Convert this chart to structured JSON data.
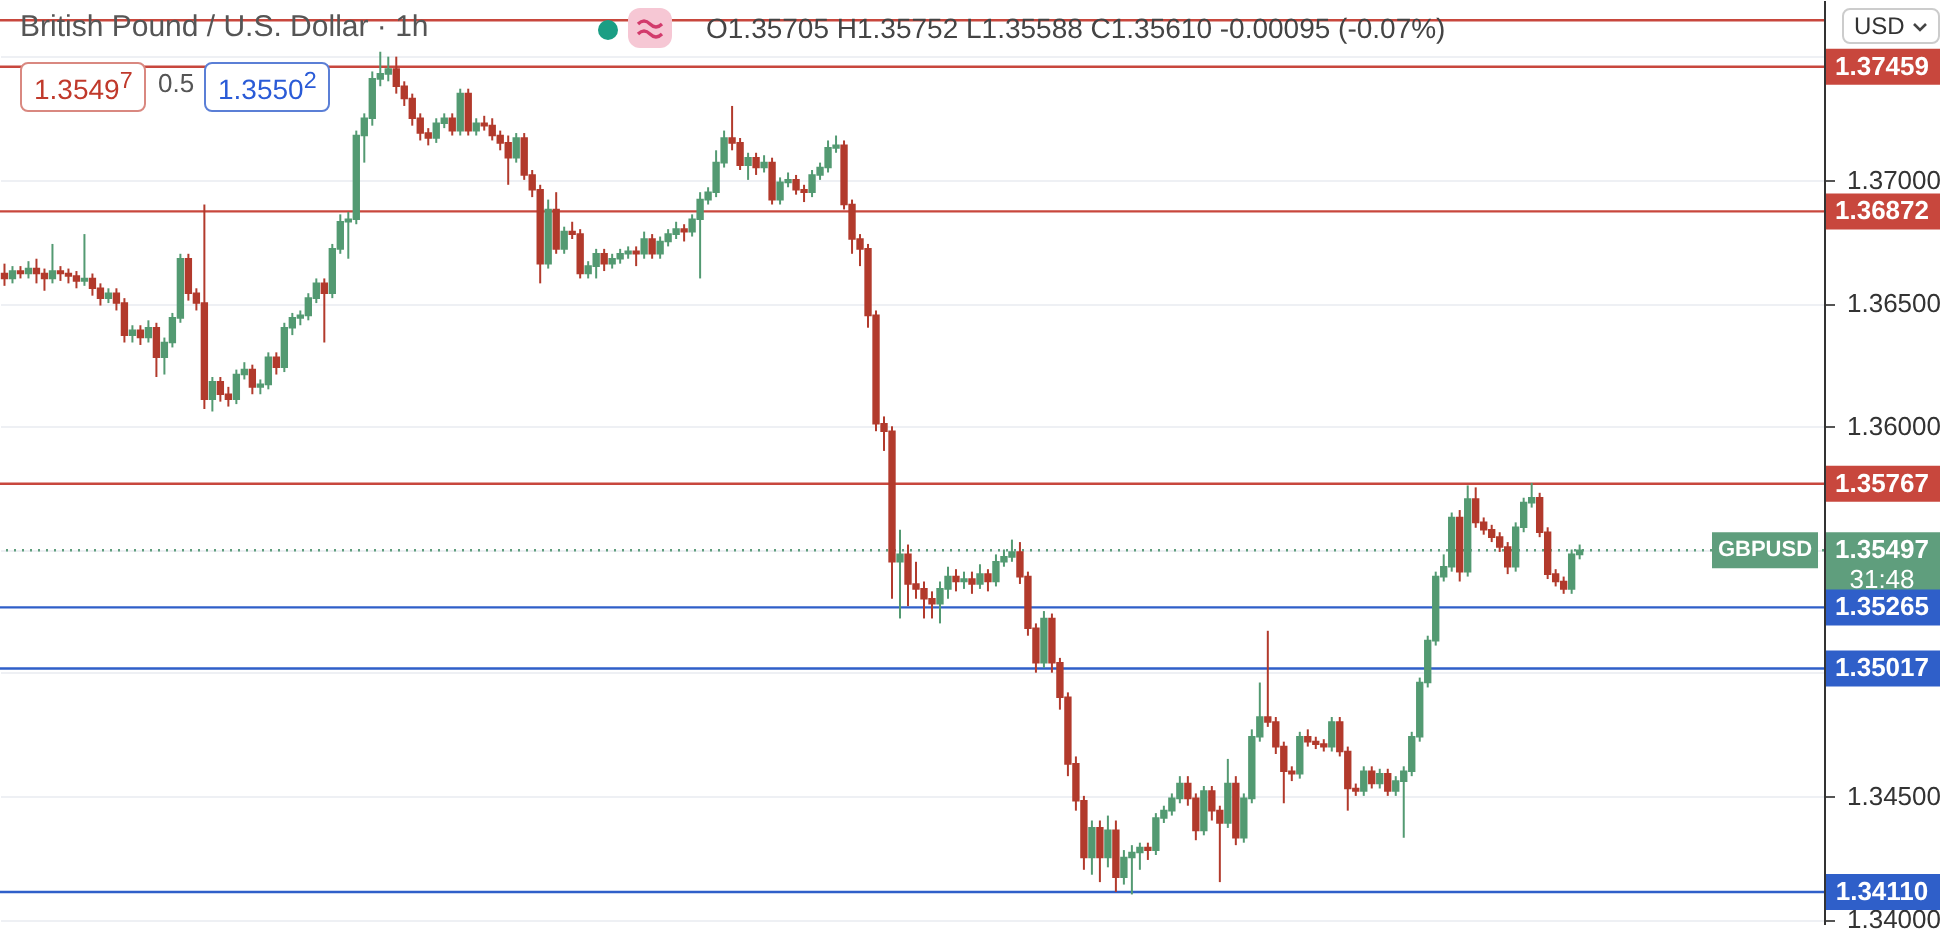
{
  "chart_data": {
    "type": "candlestick",
    "title": "British Pound / U.S. Dollar · 1h",
    "categories": [
      null,
      null,
      null,
      null,
      null,
      null,
      null,
      null,
      null,
      null,
      null,
      null,
      null,
      null,
      null,
      null,
      null,
      null,
      null,
      null,
      null,
      null,
      null,
      null,
      null,
      null,
      null,
      null,
      null,
      null,
      null,
      null,
      null,
      null,
      null,
      null,
      null,
      null,
      null,
      null,
      null,
      null,
      null,
      null,
      null,
      null,
      null,
      null,
      null,
      null,
      null,
      null,
      null,
      null,
      null,
      null,
      null,
      null,
      null,
      null,
      null,
      null,
      null,
      null,
      null,
      null,
      null,
      null,
      null,
      null,
      null,
      null,
      null,
      null,
      null,
      null,
      null,
      null,
      null,
      null,
      null,
      null,
      null,
      null,
      null,
      null,
      null,
      null,
      null,
      null,
      null,
      null,
      null,
      null,
      null,
      null,
      null,
      null,
      null,
      null,
      null,
      null,
      null,
      null,
      null,
      null,
      null,
      null,
      null,
      null,
      null,
      null,
      null,
      null,
      null,
      null,
      null,
      null,
      null,
      null,
      null,
      null,
      null,
      null,
      null,
      null,
      null,
      null,
      null,
      null,
      null,
      null,
      null,
      null,
      null,
      null,
      null,
      null,
      null,
      null,
      null,
      null,
      null,
      null,
      null,
      null,
      null,
      null,
      null,
      null,
      null,
      null,
      null,
      null,
      null,
      null,
      null,
      null,
      null,
      null,
      null,
      null,
      null,
      null,
      null,
      null,
      null,
      null,
      null,
      null,
      null,
      null,
      null,
      null,
      null,
      null,
      null,
      null,
      null,
      null,
      null,
      null,
      null,
      null,
      null,
      null,
      null,
      null,
      null,
      null,
      null,
      null,
      null,
      null,
      null,
      null,
      null,
      null,
      null,
      null,
      null,
      null,
      null,
      null,
      null,
      null,
      null,
      null,
      null,
      null,
      null,
      null,
      null,
      null,
      null,
      null,
      null,
      null,
      null,
      null,
      null,
      null,
      null,
      null,
      null,
      null,
      null,
      null
    ],
    "ohlc": [
      [
        1.3662,
        1.3666,
        1.3657,
        1.366
      ],
      [
        1.366,
        1.3665,
        1.3658,
        1.3663
      ],
      [
        1.3663,
        1.3665,
        1.366,
        1.3662
      ],
      [
        1.3662,
        1.3667,
        1.366,
        1.3664
      ],
      [
        1.3664,
        1.3668,
        1.3658,
        1.3662
      ],
      [
        1.3662,
        1.3664,
        1.3655,
        1.366
      ],
      [
        1.366,
        1.3674,
        1.3658,
        1.3663
      ],
      [
        1.3663,
        1.3665,
        1.3659,
        1.3662
      ],
      [
        1.3662,
        1.3664,
        1.3658,
        1.3661
      ],
      [
        1.3661,
        1.3663,
        1.3656,
        1.3659
      ],
      [
        1.3659,
        1.3678,
        1.3657,
        1.366
      ],
      [
        1.366,
        1.3662,
        1.3653,
        1.3656
      ],
      [
        1.3656,
        1.3658,
        1.3649,
        1.3652
      ],
      [
        1.3652,
        1.3656,
        1.365,
        1.3654
      ],
      [
        1.3654,
        1.3656,
        1.3647,
        1.365
      ],
      [
        1.365,
        1.3652,
        1.3634,
        1.3637
      ],
      [
        1.3637,
        1.3641,
        1.3634,
        1.3639
      ],
      [
        1.3639,
        1.3641,
        1.3633,
        1.3636
      ],
      [
        1.3636,
        1.3643,
        1.3634,
        1.364
      ],
      [
        1.364,
        1.3642,
        1.362,
        1.3628
      ],
      [
        1.3628,
        1.3636,
        1.3621,
        1.3634
      ],
      [
        1.3634,
        1.3646,
        1.3632,
        1.3644
      ],
      [
        1.3644,
        1.367,
        1.3642,
        1.3668
      ],
      [
        1.3668,
        1.367,
        1.3651,
        1.3654
      ],
      [
        1.3654,
        1.3656,
        1.3647,
        1.365
      ],
      [
        1.365,
        1.369,
        1.3607,
        1.3611
      ],
      [
        1.3611,
        1.362,
        1.3606,
        1.3618
      ],
      [
        1.3618,
        1.362,
        1.361,
        1.3613
      ],
      [
        1.3613,
        1.3616,
        1.3608,
        1.3611
      ],
      [
        1.3611,
        1.3623,
        1.3609,
        1.3621
      ],
      [
        1.3621,
        1.3626,
        1.3619,
        1.3623
      ],
      [
        1.3623,
        1.3625,
        1.3613,
        1.3616
      ],
      [
        1.3616,
        1.3619,
        1.3613,
        1.3617
      ],
      [
        1.3617,
        1.363,
        1.3615,
        1.3628
      ],
      [
        1.3628,
        1.363,
        1.3621,
        1.3624
      ],
      [
        1.3624,
        1.3642,
        1.3622,
        1.364
      ],
      [
        1.364,
        1.3646,
        1.3637,
        1.3644
      ],
      [
        1.3644,
        1.3647,
        1.3641,
        1.3645
      ],
      [
        1.3645,
        1.3654,
        1.3643,
        1.3652
      ],
      [
        1.3652,
        1.366,
        1.365,
        1.3658
      ],
      [
        1.3658,
        1.366,
        1.3634,
        1.3654
      ],
      [
        1.3654,
        1.3674,
        1.3652,
        1.3672
      ],
      [
        1.3672,
        1.3686,
        1.367,
        1.3683
      ],
      [
        1.3683,
        1.3687,
        1.3668,
        1.3684
      ],
      [
        1.3684,
        1.372,
        1.3682,
        1.3718
      ],
      [
        1.3718,
        1.3727,
        1.3707,
        1.3725
      ],
      [
        1.3725,
        1.3744,
        1.3722,
        1.3741
      ],
      [
        1.3741,
        1.3752,
        1.3738,
        1.3743
      ],
      [
        1.3743,
        1.375,
        1.374,
        1.3745
      ],
      [
        1.3745,
        1.375,
        1.3735,
        1.3738
      ],
      [
        1.3738,
        1.374,
        1.373,
        1.3733
      ],
      [
        1.3733,
        1.3735,
        1.3722,
        1.3725
      ],
      [
        1.3725,
        1.3727,
        1.3716,
        1.3719
      ],
      [
        1.3719,
        1.3721,
        1.3714,
        1.3717
      ],
      [
        1.3717,
        1.3725,
        1.3715,
        1.3723
      ],
      [
        1.3723,
        1.3727,
        1.3721,
        1.3725
      ],
      [
        1.3725,
        1.3727,
        1.3718,
        1.372
      ],
      [
        1.372,
        1.3737,
        1.3718,
        1.3735
      ],
      [
        1.3735,
        1.3737,
        1.3718,
        1.372
      ],
      [
        1.372,
        1.3725,
        1.3718,
        1.3723
      ],
      [
        1.3723,
        1.3726,
        1.372,
        1.3722
      ],
      [
        1.3722,
        1.3725,
        1.3716,
        1.3718
      ],
      [
        1.3718,
        1.372,
        1.3712,
        1.3715
      ],
      [
        1.3715,
        1.3718,
        1.3698,
        1.3709
      ],
      [
        1.3709,
        1.3719,
        1.3707,
        1.3717
      ],
      [
        1.3717,
        1.3719,
        1.37,
        1.3702
      ],
      [
        1.3702,
        1.3704,
        1.3693,
        1.3696
      ],
      [
        1.3696,
        1.3698,
        1.3658,
        1.3666
      ],
      [
        1.3666,
        1.3692,
        1.3664,
        1.3688
      ],
      [
        1.3688,
        1.3695,
        1.367,
        1.3672
      ],
      [
        1.3672,
        1.3681,
        1.367,
        1.3679
      ],
      [
        1.3679,
        1.3683,
        1.3676,
        1.3678
      ],
      [
        1.3678,
        1.368,
        1.366,
        1.3662
      ],
      [
        1.3662,
        1.3667,
        1.366,
        1.3665
      ],
      [
        1.3665,
        1.3672,
        1.366,
        1.367
      ],
      [
        1.367,
        1.3672,
        1.3663,
        1.3666
      ],
      [
        1.3666,
        1.367,
        1.3664,
        1.3668
      ],
      [
        1.3668,
        1.3672,
        1.3666,
        1.367
      ],
      [
        1.367,
        1.3673,
        1.3668,
        1.3671
      ],
      [
        1.3671,
        1.3673,
        1.3665,
        1.367
      ],
      [
        1.367,
        1.3679,
        1.3668,
        1.3676
      ],
      [
        1.3676,
        1.3678,
        1.3668,
        1.367
      ],
      [
        1.367,
        1.3677,
        1.3668,
        1.3675
      ],
      [
        1.3675,
        1.368,
        1.3673,
        1.3678
      ],
      [
        1.3678,
        1.3683,
        1.3676,
        1.368
      ],
      [
        1.368,
        1.3682,
        1.3675,
        1.3679
      ],
      [
        1.3679,
        1.3686,
        1.3677,
        1.3684
      ],
      [
        1.3684,
        1.3695,
        1.366,
        1.3692
      ],
      [
        1.3692,
        1.3697,
        1.369,
        1.3695
      ],
      [
        1.3695,
        1.3712,
        1.3693,
        1.3707
      ],
      [
        1.3707,
        1.372,
        1.3705,
        1.3717
      ],
      [
        1.3717,
        1.373,
        1.3712,
        1.3715
      ],
      [
        1.3715,
        1.3717,
        1.3704,
        1.3706
      ],
      [
        1.3706,
        1.3711,
        1.37,
        1.3709
      ],
      [
        1.3709,
        1.3711,
        1.3702,
        1.3705
      ],
      [
        1.3705,
        1.371,
        1.3703,
        1.3707
      ],
      [
        1.3707,
        1.3709,
        1.369,
        1.3692
      ],
      [
        1.3692,
        1.3701,
        1.369,
        1.3699
      ],
      [
        1.3699,
        1.3703,
        1.3697,
        1.37
      ],
      [
        1.37,
        1.3702,
        1.3694,
        1.3696
      ],
      [
        1.3696,
        1.3698,
        1.3691,
        1.3695
      ],
      [
        1.3695,
        1.3704,
        1.3693,
        1.3702
      ],
      [
        1.3702,
        1.3707,
        1.37,
        1.3705
      ],
      [
        1.3705,
        1.3716,
        1.3703,
        1.3713
      ],
      [
        1.3713,
        1.3718,
        1.3711,
        1.3714
      ],
      [
        1.3714,
        1.3716,
        1.3688,
        1.369
      ],
      [
        1.369,
        1.3692,
        1.367,
        1.3676
      ],
      [
        1.3676,
        1.3678,
        1.3665,
        1.3672
      ],
      [
        1.3672,
        1.3674,
        1.364,
        1.3645
      ],
      [
        1.3645,
        1.3647,
        1.3598,
        1.3601
      ],
      [
        1.3601,
        1.3604,
        1.359,
        1.3598
      ],
      [
        1.3598,
        1.36,
        1.353,
        1.3545
      ],
      [
        1.3545,
        1.3558,
        1.3522,
        1.3548
      ],
      [
        1.3548,
        1.3552,
        1.3527,
        1.3536
      ],
      [
        1.3536,
        1.3545,
        1.353,
        1.3534
      ],
      [
        1.3534,
        1.3537,
        1.3522,
        1.353
      ],
      [
        1.353,
        1.3533,
        1.3522,
        1.3528
      ],
      [
        1.3528,
        1.3537,
        1.352,
        1.3534
      ],
      [
        1.3534,
        1.3543,
        1.353,
        1.3539
      ],
      [
        1.3539,
        1.3542,
        1.3533,
        1.3537
      ],
      [
        1.3537,
        1.3541,
        1.3534,
        1.3538
      ],
      [
        1.3538,
        1.3541,
        1.3532,
        1.3536
      ],
      [
        1.3536,
        1.3544,
        1.3534,
        1.354
      ],
      [
        1.354,
        1.3542,
        1.3533,
        1.3537
      ],
      [
        1.3537,
        1.3548,
        1.3535,
        1.3545
      ],
      [
        1.3545,
        1.355,
        1.3543,
        1.3547
      ],
      [
        1.3547,
        1.3554,
        1.3545,
        1.3549
      ],
      [
        1.3549,
        1.3553,
        1.3536,
        1.3539
      ],
      [
        1.3539,
        1.3541,
        1.3515,
        1.3518
      ],
      [
        1.3518,
        1.352,
        1.35,
        1.3504
      ],
      [
        1.3504,
        1.3525,
        1.3502,
        1.3522
      ],
      [
        1.3522,
        1.3524,
        1.35,
        1.3504
      ],
      [
        1.3504,
        1.3506,
        1.3485,
        1.349
      ],
      [
        1.349,
        1.3492,
        1.3458,
        1.3463
      ],
      [
        1.3463,
        1.3466,
        1.3444,
        1.3448
      ],
      [
        1.3448,
        1.345,
        1.342,
        1.3425
      ],
      [
        1.3425,
        1.344,
        1.3418,
        1.3437
      ],
      [
        1.3437,
        1.344,
        1.3415,
        1.3425
      ],
      [
        1.3425,
        1.3442,
        1.3421,
        1.3436
      ],
      [
        1.3436,
        1.344,
        1.3411,
        1.3417
      ],
      [
        1.3417,
        1.3428,
        1.3414,
        1.3425
      ],
      [
        1.3425,
        1.343,
        1.341,
        1.3427
      ],
      [
        1.3427,
        1.3431,
        1.342,
        1.3429
      ],
      [
        1.3429,
        1.3431,
        1.3424,
        1.3428
      ],
      [
        1.3428,
        1.3443,
        1.3426,
        1.3441
      ],
      [
        1.3441,
        1.3446,
        1.3439,
        1.3444
      ],
      [
        1.3444,
        1.3451,
        1.3442,
        1.3449
      ],
      [
        1.3449,
        1.3458,
        1.3447,
        1.3455
      ],
      [
        1.3455,
        1.3458,
        1.3446,
        1.3449
      ],
      [
        1.3449,
        1.3451,
        1.3432,
        1.3436
      ],
      [
        1.3436,
        1.3454,
        1.3434,
        1.3452
      ],
      [
        1.3452,
        1.3454,
        1.344,
        1.3444
      ],
      [
        1.3444,
        1.3446,
        1.3415,
        1.3439
      ],
      [
        1.3439,
        1.3465,
        1.3437,
        1.3455
      ],
      [
        1.3455,
        1.3458,
        1.343,
        1.3433
      ],
      [
        1.3433,
        1.3451,
        1.3431,
        1.3449
      ],
      [
        1.3449,
        1.3477,
        1.3447,
        1.3474
      ],
      [
        1.3474,
        1.3496,
        1.3472,
        1.3482
      ],
      [
        1.3482,
        1.3517,
        1.3478,
        1.348
      ],
      [
        1.348,
        1.3482,
        1.3467,
        1.347
      ],
      [
        1.347,
        1.3472,
        1.3447,
        1.346
      ],
      [
        1.346,
        1.3462,
        1.3456,
        1.3459
      ],
      [
        1.3459,
        1.3476,
        1.3457,
        1.3474
      ],
      [
        1.3474,
        1.3477,
        1.347,
        1.3472
      ],
      [
        1.3472,
        1.3474,
        1.3469,
        1.3471
      ],
      [
        1.3471,
        1.3473,
        1.3468,
        1.347
      ],
      [
        1.347,
        1.3482,
        1.3468,
        1.348
      ],
      [
        1.348,
        1.3482,
        1.3466,
        1.3468
      ],
      [
        1.3468,
        1.347,
        1.3444,
        1.3453
      ],
      [
        1.3453,
        1.3455,
        1.345,
        1.3452
      ],
      [
        1.3452,
        1.3462,
        1.345,
        1.346
      ],
      [
        1.346,
        1.3462,
        1.3453,
        1.3455
      ],
      [
        1.3455,
        1.3461,
        1.3453,
        1.3459
      ],
      [
        1.3459,
        1.3461,
        1.345,
        1.3452
      ],
      [
        1.3452,
        1.3458,
        1.345,
        1.3456
      ],
      [
        1.3456,
        1.3462,
        1.3433,
        1.346
      ],
      [
        1.346,
        1.3476,
        1.3458,
        1.3474
      ],
      [
        1.3474,
        1.3498,
        1.3472,
        1.3496
      ],
      [
        1.3496,
        1.3515,
        1.3494,
        1.3513
      ],
      [
        1.3513,
        1.3541,
        1.3511,
        1.3539
      ],
      [
        1.3539,
        1.3548,
        1.3537,
        1.3543
      ],
      [
        1.3543,
        1.3565,
        1.3541,
        1.3563
      ],
      [
        1.3563,
        1.3566,
        1.3537,
        1.3541
      ],
      [
        1.3541,
        1.3576,
        1.3539,
        1.35705
      ],
      [
        1.35705,
        1.35752,
        1.35588,
        1.3561
      ],
      [
        1.3561,
        1.3563,
        1.3556,
        1.3558
      ],
      [
        1.3558,
        1.356,
        1.3553,
        1.3555
      ],
      [
        1.3555,
        1.3557,
        1.3549,
        1.3551
      ],
      [
        1.3551,
        1.3553,
        1.354,
        1.3543
      ],
      [
        1.3543,
        1.3561,
        1.3541,
        1.3559
      ],
      [
        1.3559,
        1.3571,
        1.3557,
        1.3569
      ],
      [
        1.3569,
        1.3577,
        1.3567,
        1.3571
      ],
      [
        1.3571,
        1.3573,
        1.3555,
        1.3557
      ],
      [
        1.3557,
        1.3559,
        1.3538,
        1.354
      ],
      [
        1.354,
        1.3542,
        1.3535,
        1.3537
      ],
      [
        1.3537,
        1.3539,
        1.3532,
        1.3534
      ],
      [
        1.3534,
        1.355,
        1.3532,
        1.3548
      ],
      [
        1.3548,
        1.3552,
        1.3546,
        1.35497
      ],
      null,
      null,
      null,
      null,
      null,
      null,
      null,
      null,
      null,
      null,
      null,
      null,
      null,
      null,
      null,
      null,
      null,
      null,
      null,
      null,
      null,
      null,
      null,
      null,
      null,
      null,
      null,
      null,
      null,
      null
    ],
    "ylim": [
      1.3398,
      1.3773
    ],
    "yticks": [
      {
        "value": 1.34,
        "label": "1.34000"
      },
      {
        "value": 1.345,
        "label": "1.34500"
      },
      {
        "value": 1.35,
        "label": null
      },
      {
        "value": 1.355,
        "label": null
      },
      {
        "value": 1.36,
        "label": "1.36000"
      },
      {
        "value": 1.365,
        "label": "1.36500"
      },
      {
        "value": 1.37,
        "label": "1.37000"
      },
      {
        "value": 1.375,
        "label": null
      }
    ],
    "tick_labels": "y",
    "grid": "y",
    "ref_lines": [
      {
        "axis": "y",
        "value": 1.37648,
        "label": null,
        "color": "#c8473d"
      },
      {
        "axis": "y",
        "value": 1.37459,
        "label": "1.37459",
        "color": "#c8473d"
      },
      {
        "axis": "y",
        "value": 1.36872,
        "label": "1.36872",
        "color": "#c8473d"
      },
      {
        "axis": "y",
        "value": 1.35767,
        "label": "1.35767",
        "color": "#c8473d"
      },
      {
        "axis": "y",
        "value": 1.35497,
        "label": "1.35497",
        "color": "#5f9e7d",
        "line_style": "dotted"
      },
      {
        "axis": "y",
        "value": 1.35265,
        "label": "1.35265",
        "color": "#2f5fc9"
      },
      {
        "axis": "y",
        "value": 1.35017,
        "label": "1.35017",
        "color": "#2f5fc9"
      },
      {
        "axis": "y",
        "value": 1.3411,
        "label": "1.34110",
        "color": "#2f5fc9"
      }
    ],
    "annotations": [
      "O1.35705 H1.35752 L1.35588 C1.35610 -0.00095 (-0.07%)",
      "1.3549$^{7}$",
      "0.5",
      "1.3550$^{2}$",
      "31:48",
      "USD",
      "GBPUSD"
    ]
  }
}
